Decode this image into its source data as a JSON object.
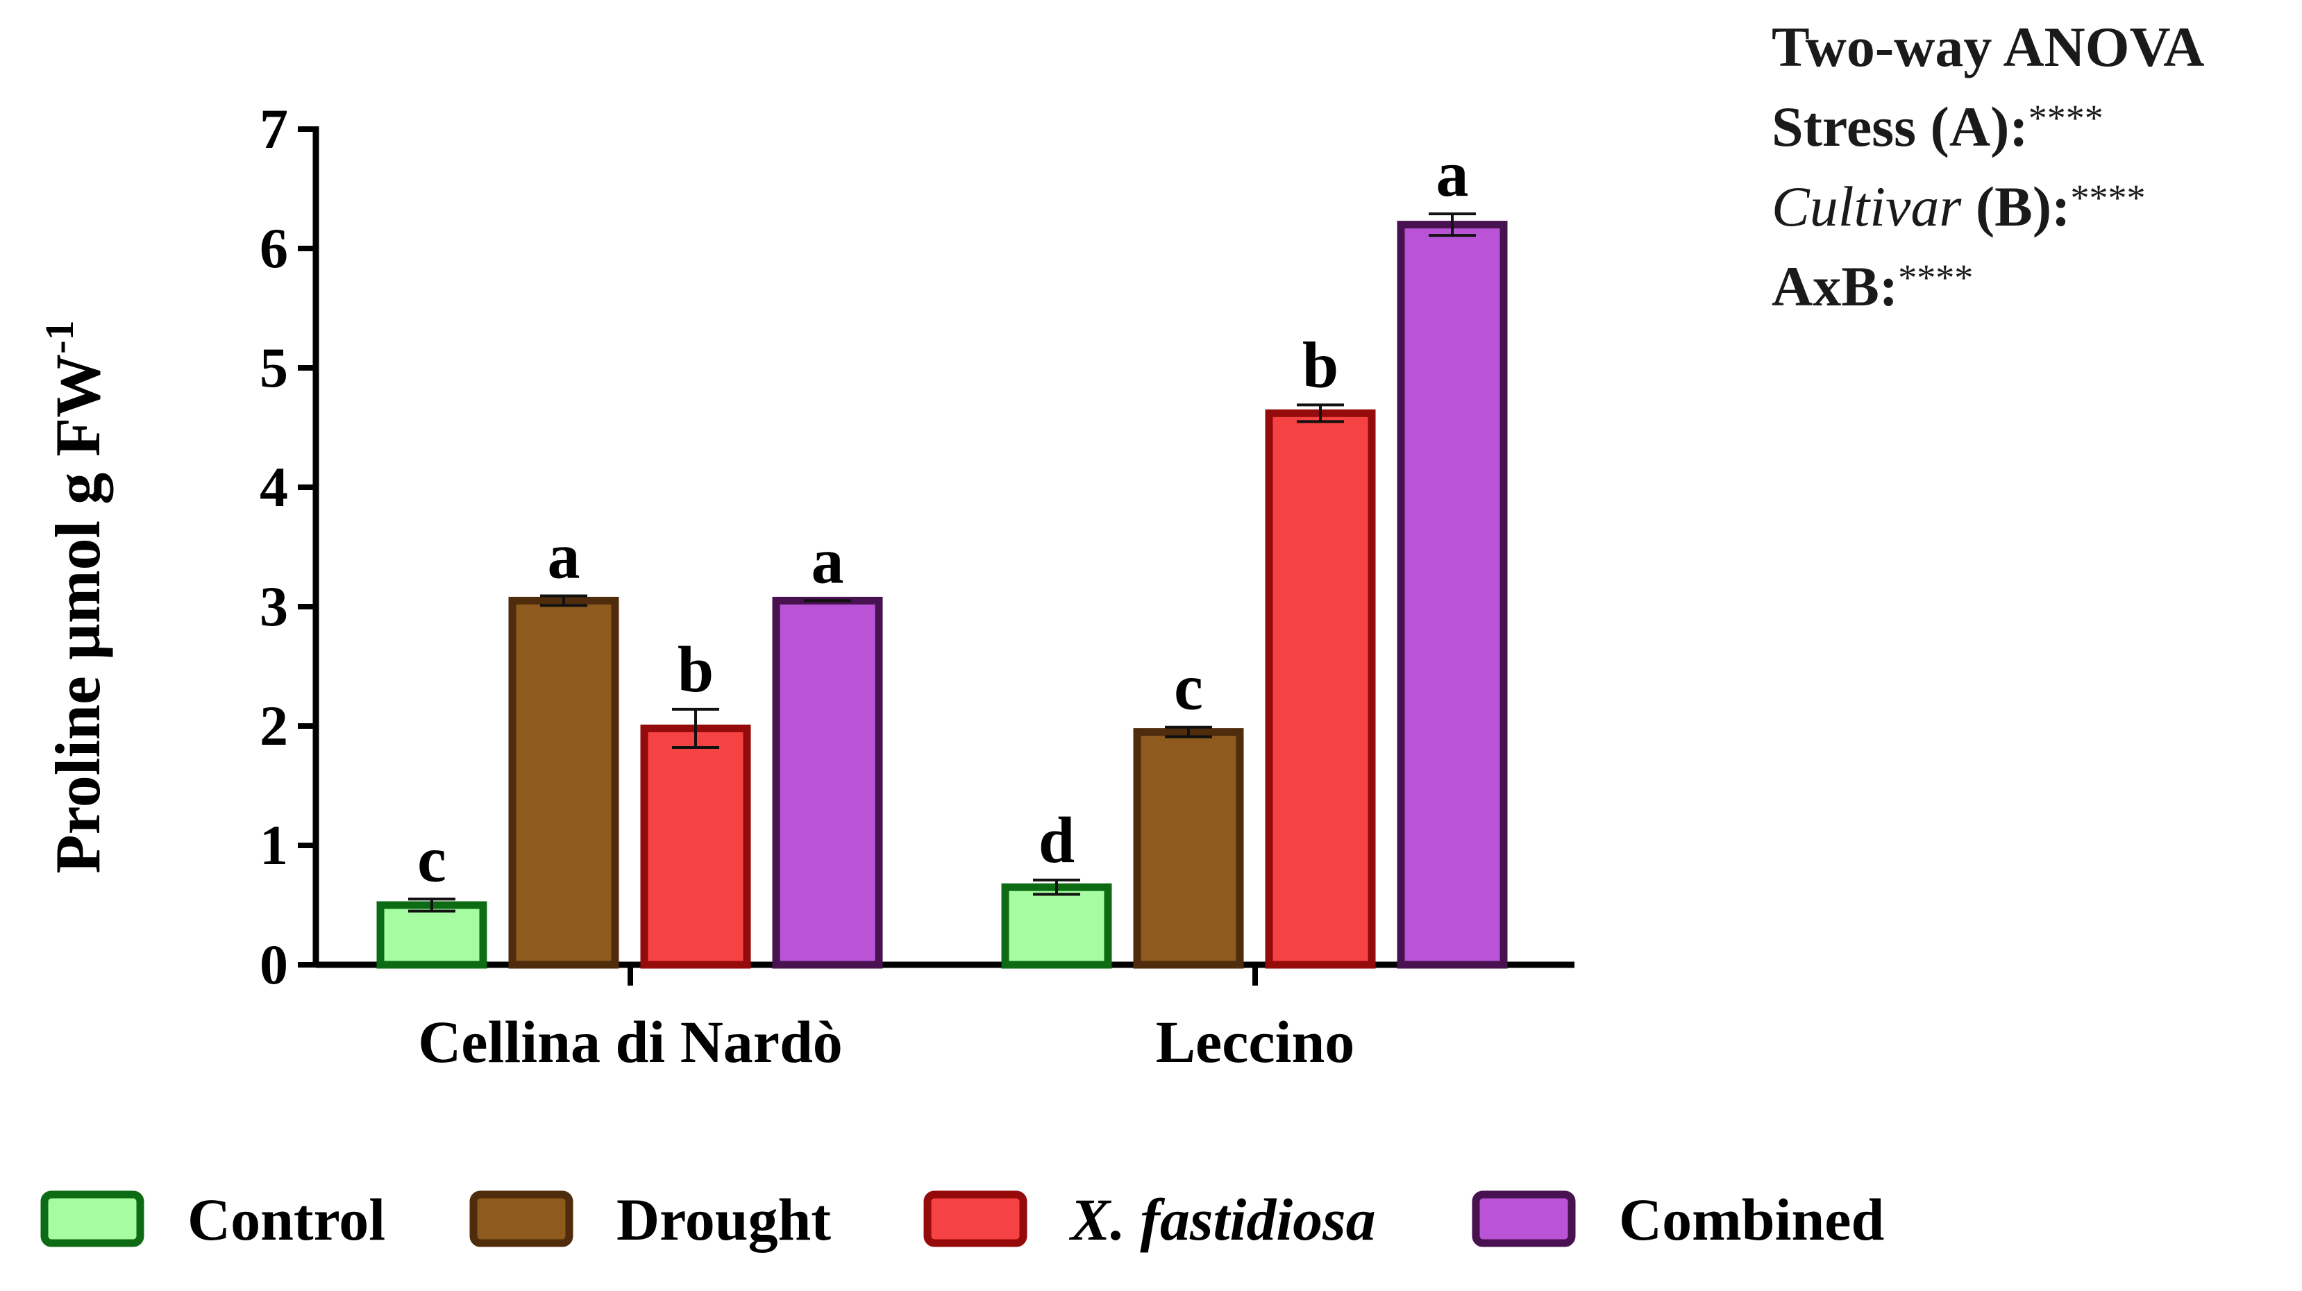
{
  "chart_data": {
    "type": "bar",
    "ylabel": "Proline µmol g FW",
    "ylabel_superscript": "-1",
    "ylim": [
      0,
      7
    ],
    "yticks": [
      "0",
      "1",
      "2",
      "3",
      "4",
      "5",
      "6",
      "7"
    ],
    "categories": [
      "Cellina di Nardò",
      "Leccino"
    ],
    "series": [
      {
        "name": "Control",
        "italic": false,
        "color": "#a6fca0",
        "edge": "#0d6b14",
        "values": [
          0.5,
          0.65
        ],
        "errors": [
          0.05,
          0.06
        ],
        "letters": [
          "c",
          "d"
        ]
      },
      {
        "name": "Drought",
        "italic": false,
        "color": "#8e5a1e",
        "edge": "#4e2c0c",
        "values": [
          3.05,
          1.95
        ],
        "errors": [
          0.04,
          0.04
        ],
        "letters": [
          "a",
          "c"
        ]
      },
      {
        "name": "X. fastidiosa",
        "italic": true,
        "color": "#f54242",
        "edge": "#950b0b",
        "values": [
          1.98,
          4.62
        ],
        "errors": [
          0.16,
          0.07
        ],
        "letters": [
          "b",
          "b"
        ]
      },
      {
        "name": "Combined",
        "italic": false,
        "color": "#b954d6",
        "edge": "#47124f",
        "values": [
          3.05,
          6.2
        ],
        "errors": [
          0.0,
          0.09
        ],
        "letters": [
          "a",
          "a"
        ]
      }
    ]
  },
  "anova": {
    "title": "Two-way ANOVA",
    "stress_label": "Stress (A):",
    "stress_sig": "****",
    "cultivar_label": "Cultivar",
    "cultivar_suffix": " (B):",
    "cultivar_sig": "****",
    "interaction_label": "AxB:",
    "interaction_sig": "****"
  }
}
